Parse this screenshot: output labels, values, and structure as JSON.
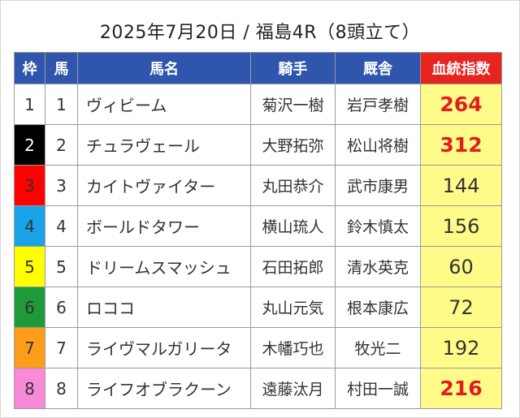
{
  "title": "2025年7月20日 / 福島4R（8頭立て）",
  "headers": {
    "waku": "枠",
    "uma": "馬",
    "name": "馬名",
    "jockey": "騎手",
    "trainer": "厩舎",
    "index": "血統指数"
  },
  "colors": {
    "header_bg": "#2f55ad",
    "index_header_bg": "#e8241f",
    "index_cell_bg": "#fffb88",
    "highlight_text": "#e21d1d"
  },
  "rows": [
    {
      "waku": "1",
      "uma": "1",
      "name": "ヴィビーム",
      "jockey": "菊沢一樹",
      "trainer": "岩戸孝樹",
      "index": "264",
      "highlight": true,
      "waku_bg": "#ffffff",
      "waku_fg": "#333333"
    },
    {
      "waku": "2",
      "uma": "2",
      "name": "チュラヴェール",
      "jockey": "大野拓弥",
      "trainer": "松山将樹",
      "index": "312",
      "highlight": true,
      "waku_bg": "#000000",
      "waku_fg": "#ffffff"
    },
    {
      "waku": "3",
      "uma": "3",
      "name": "カイトヴァイター",
      "jockey": "丸田恭介",
      "trainer": "武市康男",
      "index": "144",
      "highlight": false,
      "waku_bg": "#ff0000",
      "waku_fg": "#333333"
    },
    {
      "waku": "4",
      "uma": "4",
      "name": "ボールドタワー",
      "jockey": "横山琉人",
      "trainer": "鈴木慎太",
      "index": "156",
      "highlight": false,
      "waku_bg": "#1aa3e8",
      "waku_fg": "#333333"
    },
    {
      "waku": "5",
      "uma": "5",
      "name": "ドリームスマッシュ",
      "jockey": "石田拓郎",
      "trainer": "清水英克",
      "index": "60",
      "highlight": false,
      "waku_bg": "#ffff00",
      "waku_fg": "#333333"
    },
    {
      "waku": "6",
      "uma": "6",
      "name": "ロココ",
      "jockey": "丸山元気",
      "trainer": "根本康広",
      "index": "72",
      "highlight": false,
      "waku_bg": "#1f9a3a",
      "waku_fg": "#333333"
    },
    {
      "waku": "7",
      "uma": "7",
      "name": "ライヴマルガリータ",
      "jockey": "木幡巧也",
      "trainer": "牧光二",
      "index": "192",
      "highlight": false,
      "waku_bg": "#ff9c1a",
      "waku_fg": "#333333"
    },
    {
      "waku": "8",
      "uma": "8",
      "name": "ライフオブラクーン",
      "jockey": "遠藤汰月",
      "trainer": "村田一誠",
      "index": "216",
      "highlight": true,
      "waku_bg": "#f98ad7",
      "waku_fg": "#333333"
    }
  ]
}
